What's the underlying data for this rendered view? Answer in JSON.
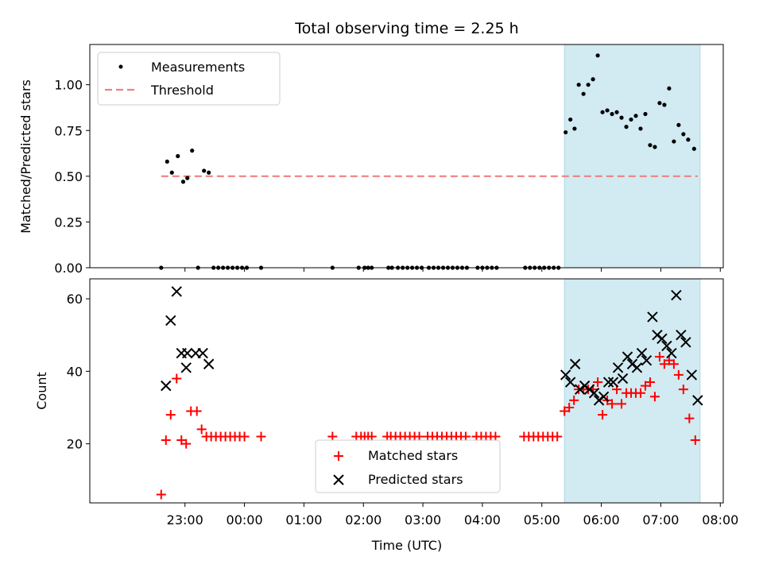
{
  "chart_data": {
    "title": "Total observing time = 2.25 h",
    "xlabel": "Time (UTC)",
    "x_ticks": [
      "23:00",
      "00:00",
      "01:00",
      "02:00",
      "03:00",
      "04:00",
      "05:00",
      "06:00",
      "07:00",
      "08:00"
    ],
    "x_tick_hours": [
      23,
      24,
      25,
      26,
      27,
      28,
      29,
      30,
      31,
      32
    ],
    "x_range_hours": [
      21.4,
      32.05
    ],
    "shaded_region_hours": [
      29.38,
      31.66
    ],
    "shade_color": "#add8e6",
    "panels": [
      {
        "type": "scatter",
        "ylabel": "Matched/Predicted stars",
        "ylim": [
          0,
          1.22
        ],
        "y_ticks": [
          0.0,
          0.25,
          0.5,
          0.75,
          1.0
        ],
        "y_tick_labels": [
          "0.00",
          "0.25",
          "0.50",
          "0.75",
          "1.00"
        ],
        "legend_position": "top-left",
        "threshold": {
          "name": "Threshold",
          "value": 0.5,
          "x_range_hours": [
            22.6,
            31.62
          ],
          "color": "#f08080"
        },
        "series": [
          {
            "name": "Measurements",
            "color": "#000000",
            "points": [
              [
                22.6,
                0.0
              ],
              [
                22.7,
                0.58
              ],
              [
                22.78,
                0.52
              ],
              [
                22.88,
                0.61
              ],
              [
                22.97,
                0.47
              ],
              [
                23.04,
                0.49
              ],
              [
                23.12,
                0.64
              ],
              [
                23.22,
                0.0
              ],
              [
                23.32,
                0.53
              ],
              [
                23.4,
                0.52
              ],
              [
                23.48,
                0.0
              ],
              [
                23.56,
                0.0
              ],
              [
                23.64,
                0.0
              ],
              [
                23.72,
                0.0
              ],
              [
                23.8,
                0.0
              ],
              [
                23.88,
                0.0
              ],
              [
                23.96,
                0.0
              ],
              [
                24.04,
                0.0
              ],
              [
                24.28,
                0.0
              ],
              [
                25.48,
                0.0
              ],
              [
                25.92,
                0.0
              ],
              [
                26.02,
                0.0
              ],
              [
                26.08,
                0.0
              ],
              [
                26.14,
                0.0
              ],
              [
                26.42,
                0.0
              ],
              [
                26.48,
                0.0
              ],
              [
                26.58,
                0.0
              ],
              [
                26.66,
                0.0
              ],
              [
                26.74,
                0.0
              ],
              [
                26.82,
                0.0
              ],
              [
                26.9,
                0.0
              ],
              [
                26.98,
                0.0
              ],
              [
                27.1,
                0.0
              ],
              [
                27.18,
                0.0
              ],
              [
                27.26,
                0.0
              ],
              [
                27.34,
                0.0
              ],
              [
                27.42,
                0.0
              ],
              [
                27.5,
                0.0
              ],
              [
                27.58,
                0.0
              ],
              [
                27.66,
                0.0
              ],
              [
                27.74,
                0.0
              ],
              [
                27.92,
                0.0
              ],
              [
                28.0,
                0.0
              ],
              [
                28.08,
                0.0
              ],
              [
                28.16,
                0.0
              ],
              [
                28.24,
                0.0
              ],
              [
                28.72,
                0.0
              ],
              [
                28.8,
                0.0
              ],
              [
                28.88,
                0.0
              ],
              [
                28.96,
                0.0
              ],
              [
                29.04,
                0.0
              ],
              [
                29.12,
                0.0
              ],
              [
                29.2,
                0.0
              ],
              [
                29.28,
                0.0
              ],
              [
                29.4,
                0.74
              ],
              [
                29.48,
                0.81
              ],
              [
                29.55,
                0.76
              ],
              [
                29.62,
                1.0
              ],
              [
                29.7,
                0.95
              ],
              [
                29.78,
                1.0
              ],
              [
                29.86,
                1.03
              ],
              [
                29.94,
                1.16
              ],
              [
                30.02,
                0.85
              ],
              [
                30.1,
                0.86
              ],
              [
                30.18,
                0.84
              ],
              [
                30.26,
                0.85
              ],
              [
                30.34,
                0.82
              ],
              [
                30.42,
                0.77
              ],
              [
                30.5,
                0.81
              ],
              [
                30.58,
                0.83
              ],
              [
                30.66,
                0.76
              ],
              [
                30.74,
                0.84
              ],
              [
                30.82,
                0.67
              ],
              [
                30.9,
                0.66
              ],
              [
                30.98,
                0.9
              ],
              [
                31.06,
                0.89
              ],
              [
                31.14,
                0.98
              ],
              [
                31.22,
                0.69
              ],
              [
                31.3,
                0.78
              ],
              [
                31.38,
                0.73
              ],
              [
                31.46,
                0.7
              ],
              [
                31.56,
                0.65
              ]
            ]
          }
        ]
      },
      {
        "type": "scatter",
        "ylabel": "Count",
        "ylim": [
          3.7,
          65.5
        ],
        "y_ticks": [
          20,
          40,
          60
        ],
        "y_tick_labels": [
          "20",
          "40",
          "60"
        ],
        "legend_position": "bottom-center",
        "series": [
          {
            "name": "Matched stars",
            "marker": "+",
            "color": "#ff0000",
            "points": [
              [
                22.6,
                6
              ],
              [
                22.68,
                21
              ],
              [
                22.76,
                28
              ],
              [
                22.86,
                38
              ],
              [
                22.94,
                21
              ],
              [
                23.02,
                20
              ],
              [
                23.1,
                29
              ],
              [
                23.2,
                29
              ],
              [
                23.28,
                24
              ],
              [
                23.36,
                22
              ],
              [
                23.44,
                22
              ],
              [
                23.52,
                22
              ],
              [
                23.6,
                22
              ],
              [
                23.68,
                22
              ],
              [
                23.76,
                22
              ],
              [
                23.84,
                22
              ],
              [
                23.92,
                22
              ],
              [
                24.0,
                22
              ],
              [
                24.28,
                22
              ],
              [
                25.48,
                22
              ],
              [
                25.88,
                22
              ],
              [
                25.96,
                22
              ],
              [
                26.02,
                22
              ],
              [
                26.08,
                22
              ],
              [
                26.14,
                22
              ],
              [
                26.4,
                22
              ],
              [
                26.46,
                22
              ],
              [
                26.54,
                22
              ],
              [
                26.62,
                22
              ],
              [
                26.7,
                22
              ],
              [
                26.78,
                22
              ],
              [
                26.86,
                22
              ],
              [
                26.94,
                22
              ],
              [
                27.08,
                22
              ],
              [
                27.16,
                22
              ],
              [
                27.24,
                22
              ],
              [
                27.32,
                22
              ],
              [
                27.4,
                22
              ],
              [
                27.48,
                22
              ],
              [
                27.56,
                22
              ],
              [
                27.64,
                22
              ],
              [
                27.72,
                22
              ],
              [
                27.9,
                22
              ],
              [
                27.98,
                22
              ],
              [
                28.06,
                22
              ],
              [
                28.14,
                22
              ],
              [
                28.22,
                22
              ],
              [
                28.7,
                22
              ],
              [
                28.78,
                22
              ],
              [
                28.86,
                22
              ],
              [
                28.94,
                22
              ],
              [
                29.02,
                22
              ],
              [
                29.1,
                22
              ],
              [
                29.18,
                22
              ],
              [
                29.26,
                22
              ],
              [
                29.38,
                29
              ],
              [
                29.46,
                30
              ],
              [
                29.54,
                32
              ],
              [
                29.62,
                35
              ],
              [
                29.7,
                35
              ],
              [
                29.78,
                35
              ],
              [
                29.86,
                35
              ],
              [
                29.94,
                37
              ],
              [
                30.02,
                28
              ],
              [
                30.1,
                32
              ],
              [
                30.18,
                31
              ],
              [
                30.26,
                35
              ],
              [
                30.34,
                31
              ],
              [
                30.42,
                34
              ],
              [
                30.5,
                34
              ],
              [
                30.58,
                34
              ],
              [
                30.66,
                34
              ],
              [
                30.74,
                36
              ],
              [
                30.82,
                37
              ],
              [
                30.9,
                33
              ],
              [
                30.98,
                44
              ],
              [
                31.06,
                42
              ],
              [
                31.14,
                43
              ],
              [
                31.22,
                42
              ],
              [
                31.3,
                39
              ],
              [
                31.38,
                35
              ],
              [
                31.48,
                27
              ],
              [
                31.58,
                21
              ]
            ]
          },
          {
            "name": "Predicted stars",
            "marker": "x",
            "color": "#000000",
            "points": [
              [
                22.68,
                36
              ],
              [
                22.76,
                54
              ],
              [
                22.86,
                62
              ],
              [
                22.94,
                45
              ],
              [
                23.02,
                41
              ],
              [
                23.04,
                45
              ],
              [
                23.18,
                45
              ],
              [
                23.3,
                45
              ],
              [
                23.4,
                42
              ],
              [
                29.4,
                39
              ],
              [
                29.48,
                37
              ],
              [
                29.56,
                42
              ],
              [
                29.64,
                35
              ],
              [
                29.72,
                36
              ],
              [
                29.8,
                35
              ],
              [
                29.88,
                34
              ],
              [
                29.96,
                32
              ],
              [
                30.04,
                33
              ],
              [
                30.12,
                37
              ],
              [
                30.2,
                37
              ],
              [
                30.28,
                41
              ],
              [
                30.36,
                38
              ],
              [
                30.44,
                44
              ],
              [
                30.52,
                42
              ],
              [
                30.6,
                41
              ],
              [
                30.68,
                45
              ],
              [
                30.76,
                43
              ],
              [
                30.86,
                55
              ],
              [
                30.94,
                50
              ],
              [
                31.02,
                49
              ],
              [
                31.1,
                47
              ],
              [
                31.18,
                45
              ],
              [
                31.26,
                61
              ],
              [
                31.34,
                50
              ],
              [
                31.42,
                48
              ],
              [
                31.52,
                39
              ],
              [
                31.62,
                32
              ]
            ]
          }
        ]
      }
    ]
  }
}
